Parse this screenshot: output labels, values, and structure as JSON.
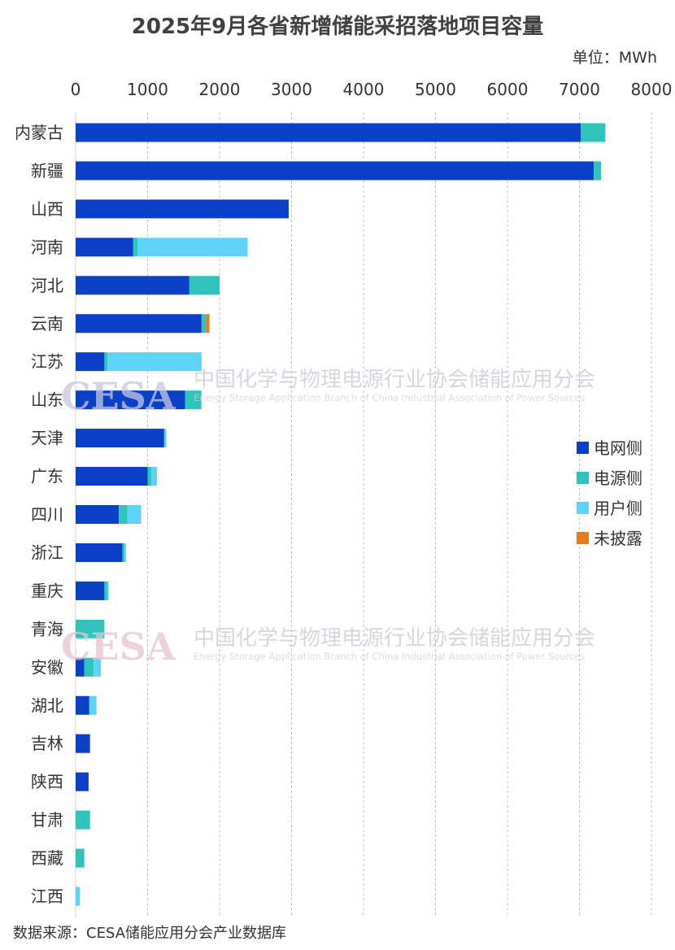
{
  "chart_data": {
    "type": "bar",
    "orientation": "horizontal",
    "stacked": true,
    "title": "2025年9月各省新增储能采招落地项目容量",
    "unit_label": "单位：MWh",
    "xlim": [
      0,
      8000
    ],
    "x_ticks": [
      "0",
      "1000",
      "2000",
      "3000",
      "4000",
      "5000",
      "6000",
      "7000",
      "8000"
    ],
    "grid": true,
    "legend_position": "right",
    "categories": [
      "内蒙古",
      "新疆",
      "山西",
      "河南",
      "河北",
      "云南",
      "江苏",
      "山东",
      "天津",
      "广东",
      "四川",
      "浙江",
      "重庆",
      "青海",
      "安徽",
      "湖北",
      "吉林",
      "陕西",
      "甘肃",
      "西藏",
      "江西"
    ],
    "series": [
      {
        "name": "电网侧",
        "color": "#0a40c8",
        "values": [
          7020,
          7200,
          2960,
          800,
          1580,
          1750,
          400,
          1520,
          1230,
          1000,
          600,
          650,
          400,
          0,
          120,
          190,
          200,
          180,
          0,
          0,
          0
        ]
      },
      {
        "name": "电源侧",
        "color": "#2ec4bb",
        "values": [
          340,
          100,
          0,
          60,
          420,
          60,
          40,
          220,
          0,
          50,
          120,
          30,
          40,
          400,
          130,
          0,
          0,
          0,
          200,
          120,
          0
        ]
      },
      {
        "name": "用户侧",
        "color": "#5cd3f7",
        "values": [
          0,
          0,
          0,
          1530,
          0,
          0,
          1310,
          10,
          30,
          80,
          190,
          20,
          20,
          0,
          100,
          100,
          0,
          0,
          0,
          0,
          60
        ]
      },
      {
        "name": "未披露",
        "color": "#e87a1e",
        "values": [
          0,
          0,
          0,
          0,
          0,
          50,
          0,
          0,
          0,
          0,
          0,
          0,
          0,
          0,
          0,
          0,
          0,
          0,
          0,
          0,
          0
        ]
      }
    ]
  },
  "watermark": {
    "logo": "CESA",
    "name_cn": "中国化学与物理电源行业协会储能应用分会",
    "name_en": "Energy Storage Application Branch of China Industrial Association of Power Sources"
  },
  "source": "数据来源：CESA储能应用分会产业数据库"
}
